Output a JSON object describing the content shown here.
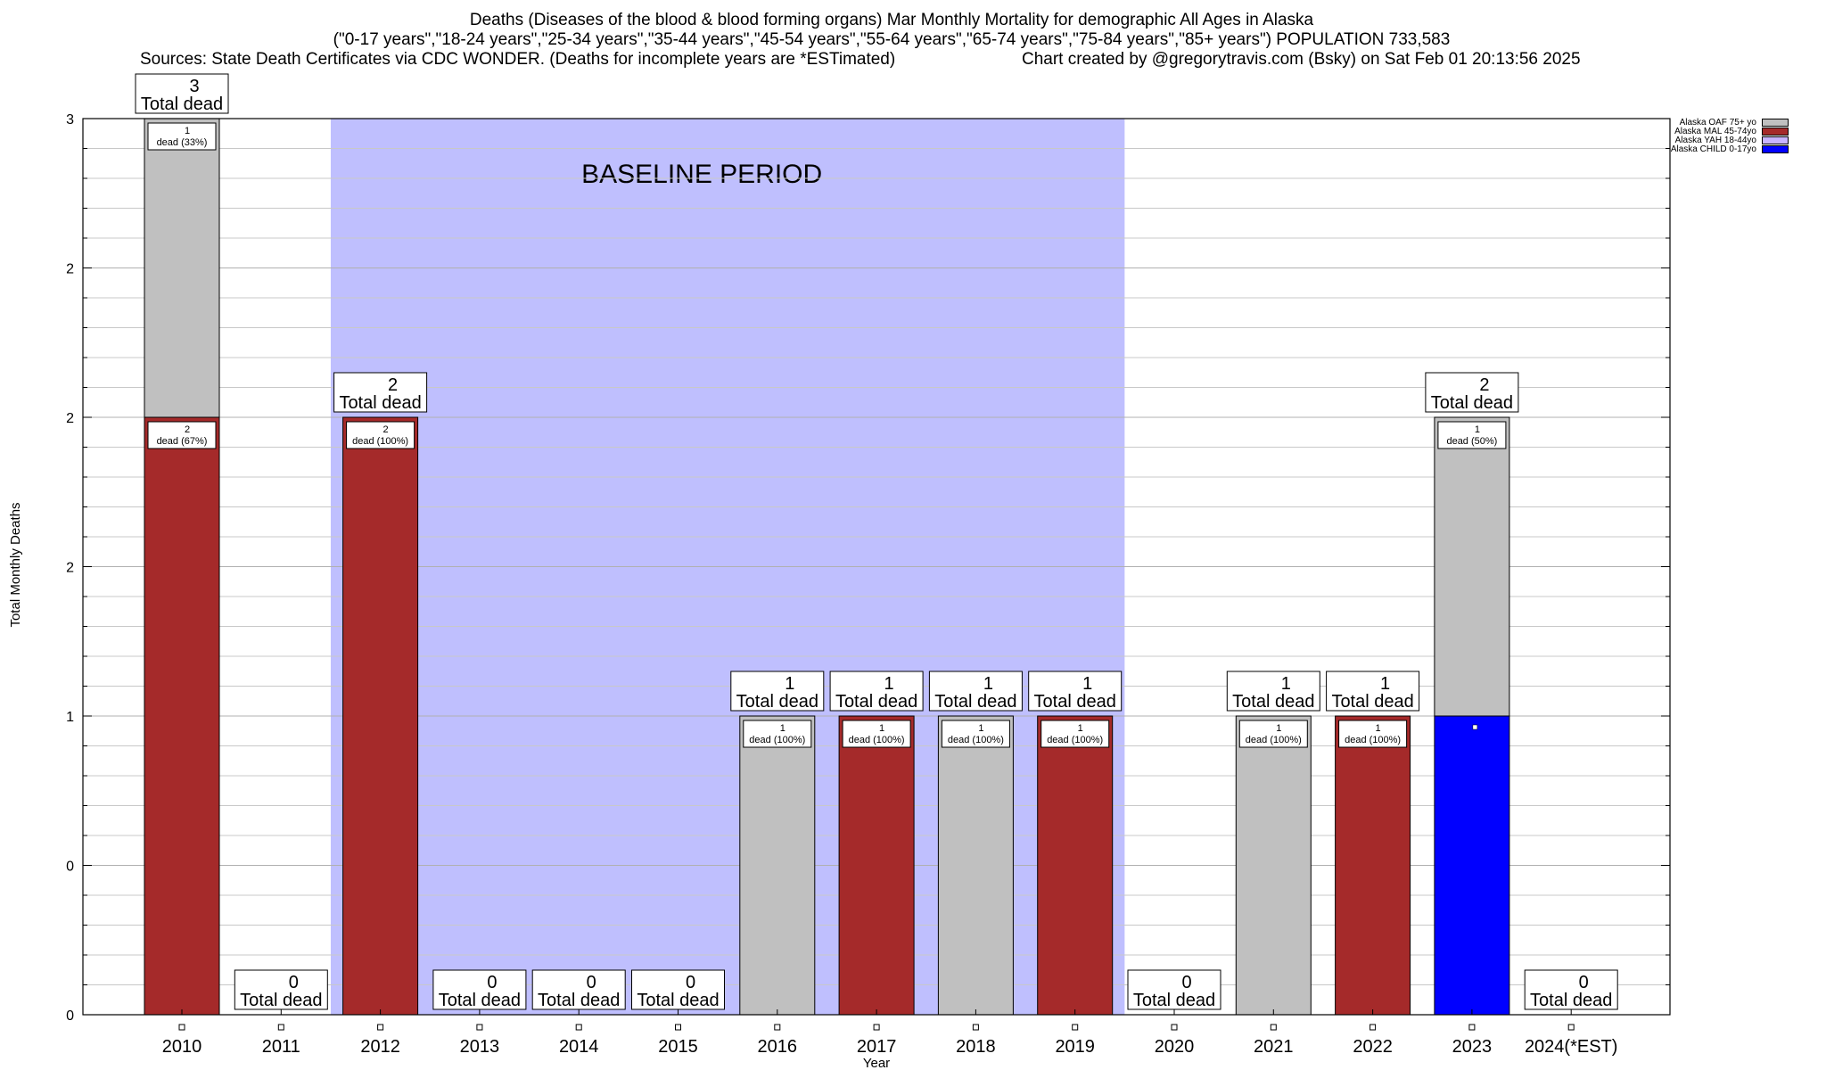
{
  "title_lines": [
    "Deaths (Diseases of the blood & blood forming organs) Mar Monthly Mortality for demographic All Ages in Alaska",
    "(\"0-17 years\",\"18-24 years\",\"25-34 years\",\"35-44 years\",\"45-54 years\",\"55-64 years\",\"65-74 years\",\"75-84 years\",\"85+ years\") POPULATION 733,583"
  ],
  "sources": "Sources: State Death Certificates via CDC WONDER. (Deaths for incomplete years are *ESTimated)",
  "credit": "Chart created by @gregorytravis.com (Bsky) on Sat Feb 01 20:13:56 2025",
  "chart_data": {
    "type": "bar",
    "stacked": true,
    "xlabel": "Year",
    "ylabel": "Total Monthly Deaths",
    "ylim": [
      0,
      3
    ],
    "y_tick_labels": [
      "0",
      "0",
      "1",
      "2",
      "2",
      "2",
      "3"
    ],
    "grid": true,
    "legend_position": "top-right",
    "baseline_label": "BASELINE PERIOD",
    "baseline_range": [
      "2012",
      "2019"
    ],
    "categories": [
      "2010",
      "2011",
      "2012",
      "2013",
      "2014",
      "2015",
      "2016",
      "2017",
      "2018",
      "2019",
      "2020",
      "2021",
      "2022",
      "2023",
      "2024(*EST)"
    ],
    "series": [
      {
        "name": "Alaska CHILD 0-17yo",
        "color": "#0000ff",
        "values": [
          0,
          0,
          0,
          0,
          0,
          0,
          0,
          0,
          0,
          0,
          0,
          0,
          0,
          1,
          0
        ]
      },
      {
        "name": "Alaska YAH 18-44yo",
        "color": "#c8b4ff",
        "values": [
          0,
          0,
          0,
          0,
          0,
          0,
          0,
          0,
          0,
          0,
          0,
          0,
          0,
          0,
          0
        ]
      },
      {
        "name": "Alaska MAL 45-74yo",
        "color": "#a52a2a",
        "values": [
          2,
          0,
          2,
          0,
          0,
          0,
          0,
          1,
          0,
          1,
          0,
          0,
          1,
          0,
          0
        ]
      },
      {
        "name": "Alaska OAF 75+ yo",
        "color": "#c0c0c0",
        "values": [
          1,
          0,
          0,
          0,
          0,
          0,
          1,
          0,
          1,
          0,
          0,
          1,
          0,
          1,
          0
        ]
      }
    ],
    "totals": [
      3,
      0,
      2,
      0,
      0,
      0,
      1,
      1,
      1,
      1,
      0,
      1,
      1,
      2,
      0
    ],
    "total_label": "Total dead",
    "segment_labels": [
      {
        "bar": 0,
        "series": 3,
        "count": "1",
        "text": "dead (33%)"
      },
      {
        "bar": 0,
        "series": 2,
        "count": "2",
        "text": "dead (67%)"
      },
      {
        "bar": 2,
        "series": 2,
        "count": "2",
        "text": "dead (100%)"
      },
      {
        "bar": 6,
        "series": 3,
        "count": "1",
        "text": "dead (100%)"
      },
      {
        "bar": 7,
        "series": 2,
        "count": "1",
        "text": "dead (100%)"
      },
      {
        "bar": 8,
        "series": 3,
        "count": "1",
        "text": "dead (100%)"
      },
      {
        "bar": 9,
        "series": 2,
        "count": "1",
        "text": "dead (100%)"
      },
      {
        "bar": 11,
        "series": 3,
        "count": "1",
        "text": "dead (100%)"
      },
      {
        "bar": 12,
        "series": 2,
        "count": "1",
        "text": "dead (100%)"
      },
      {
        "bar": 13,
        "series": 3,
        "count": "1",
        "text": "dead (50%)"
      }
    ],
    "legend_order": [
      3,
      2,
      1,
      0
    ]
  }
}
